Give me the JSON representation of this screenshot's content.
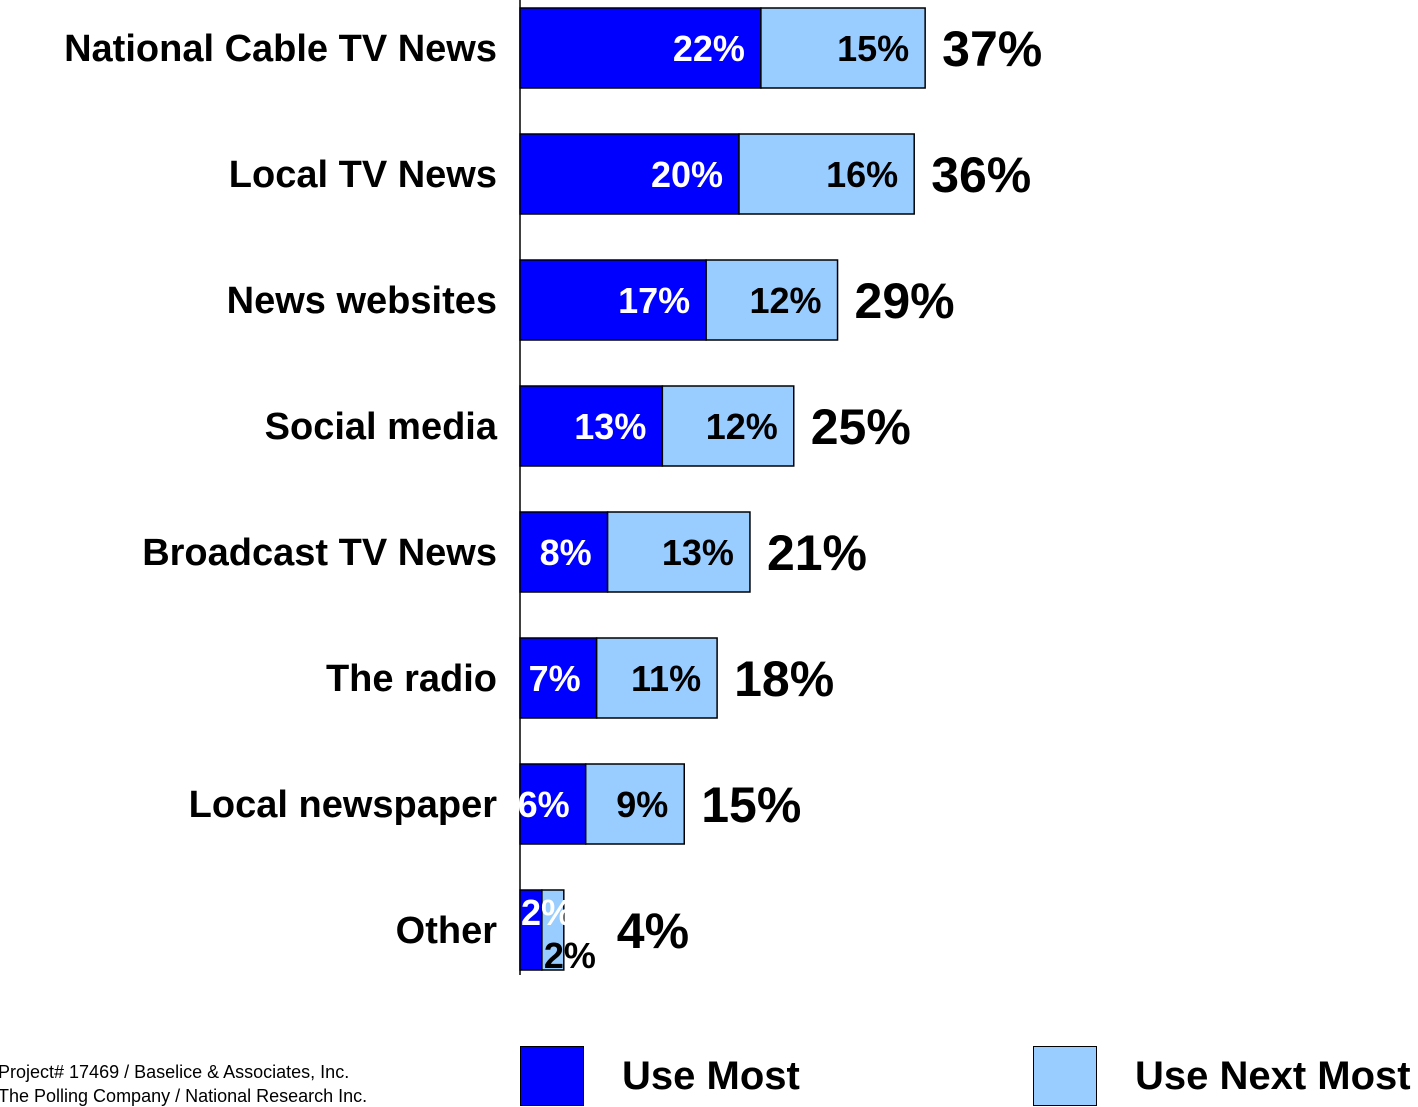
{
  "chart_data": {
    "type": "bar",
    "orientation": "horizontal",
    "stacked": true,
    "categories": [
      "National Cable TV News",
      "Local TV News",
      "News websites",
      "Social media",
      "Broadcast TV News",
      "The radio",
      "Local newspaper",
      "Other"
    ],
    "series": [
      {
        "name": "Use Most",
        "color": "#0000ff",
        "label_color": "#ffffff",
        "values": [
          22,
          20,
          17,
          13,
          8,
          7,
          6,
          2
        ],
        "labels": [
          "22%",
          "20%",
          "17%",
          "13%",
          "8%",
          "7%",
          "6%",
          "2%"
        ]
      },
      {
        "name": "Use Next Most",
        "color": "#99ccff",
        "label_color": "#000000",
        "values": [
          15,
          16,
          12,
          12,
          13,
          11,
          9,
          2
        ],
        "labels": [
          "15%",
          "16%",
          "12%",
          "12%",
          "13%",
          "11%",
          "9%",
          "2%"
        ]
      }
    ],
    "totals": [
      "37%",
      "36%",
      "29%",
      "25%",
      "21%",
      "18%",
      "15%",
      "4%"
    ],
    "xlim": [
      0,
      37
    ],
    "grid": false,
    "legend_position": "bottom"
  },
  "footnote": {
    "line1": "Project# 17469 / Baselice & Associates, Inc.",
    "line2": "The Polling Company / National Research Inc."
  }
}
